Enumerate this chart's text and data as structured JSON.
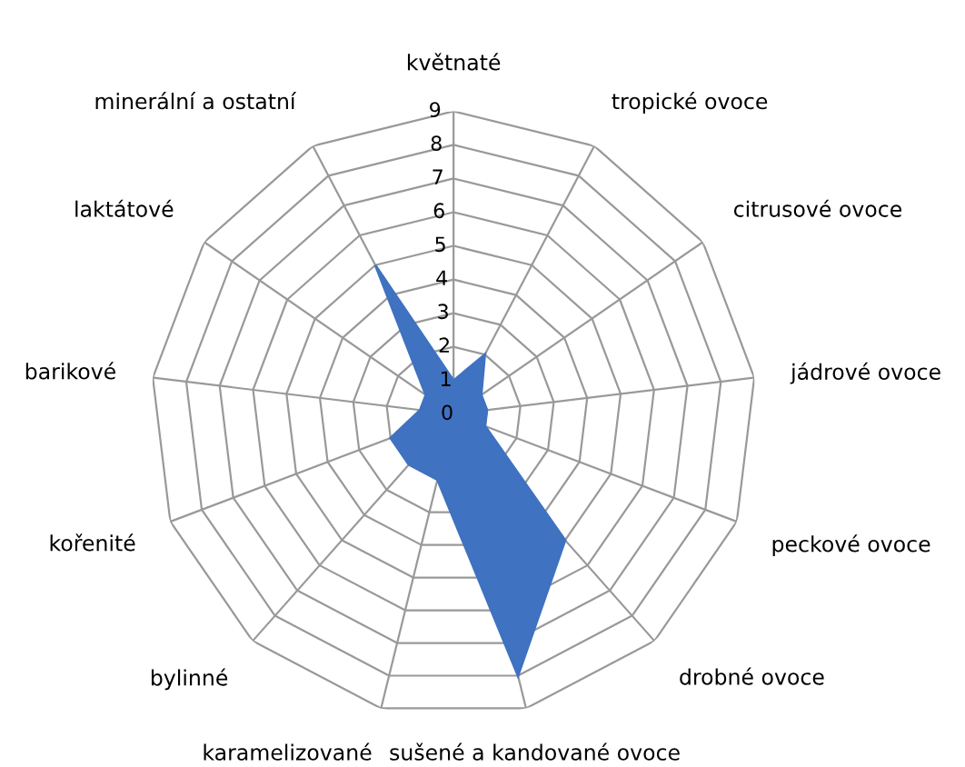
{
  "chart_data": {
    "type": "radar",
    "categories": [
      "květnaté",
      "tropické ovoce",
      "citrusové ovoce",
      "jádrové ovoce",
      "peckové ovoce",
      "drobné ovoce",
      "sušené a kandované ovoce",
      "karamelizované",
      "bylinné",
      "kořenité",
      "barikové",
      "laktátové",
      "minerální a ostatní"
    ],
    "series": [
      {
        "color": "#3f72c0",
        "values": [
          1,
          2,
          1,
          1,
          1,
          5,
          8,
          2,
          2,
          2,
          1,
          1,
          5
        ]
      }
    ],
    "ylim": [
      0,
      9
    ],
    "yticks": [
      0,
      1,
      2,
      3,
      4,
      5,
      6,
      7,
      8,
      9
    ],
    "grid": true,
    "legend": false
  }
}
